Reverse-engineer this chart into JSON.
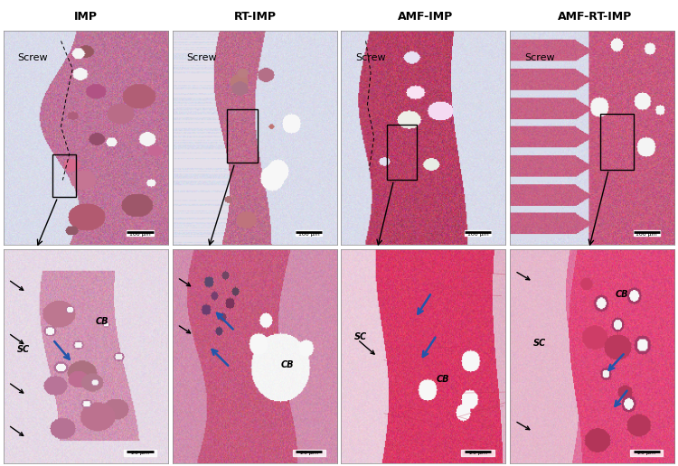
{
  "columns": [
    "IMP",
    "RT-IMP",
    "AMF-IMP",
    "AMF-RT-IMP"
  ],
  "scale_bars_top": [
    "100 μm",
    "100 μm",
    "100 μm",
    "100 μm"
  ],
  "scale_bars_bottom": [
    "20 μm",
    "20 μm",
    "20 μm",
    "20 μm"
  ],
  "figure_width": 7.5,
  "figure_height": 5.16,
  "dpi": 100,
  "lavender_bg": "#d8dae8",
  "bone_pink_light": "#d4a0b8",
  "bone_pink_mid": "#c07898",
  "bone_pink_dark": "#a05070",
  "bone_magenta": "#c03060",
  "bone_deep": "#8a2848",
  "white_space": "#f0eef4",
  "col_label_fontsize": 9,
  "screw_label_fontsize": 8,
  "annotation_fontsize": 7,
  "scale_fontsize": 5
}
